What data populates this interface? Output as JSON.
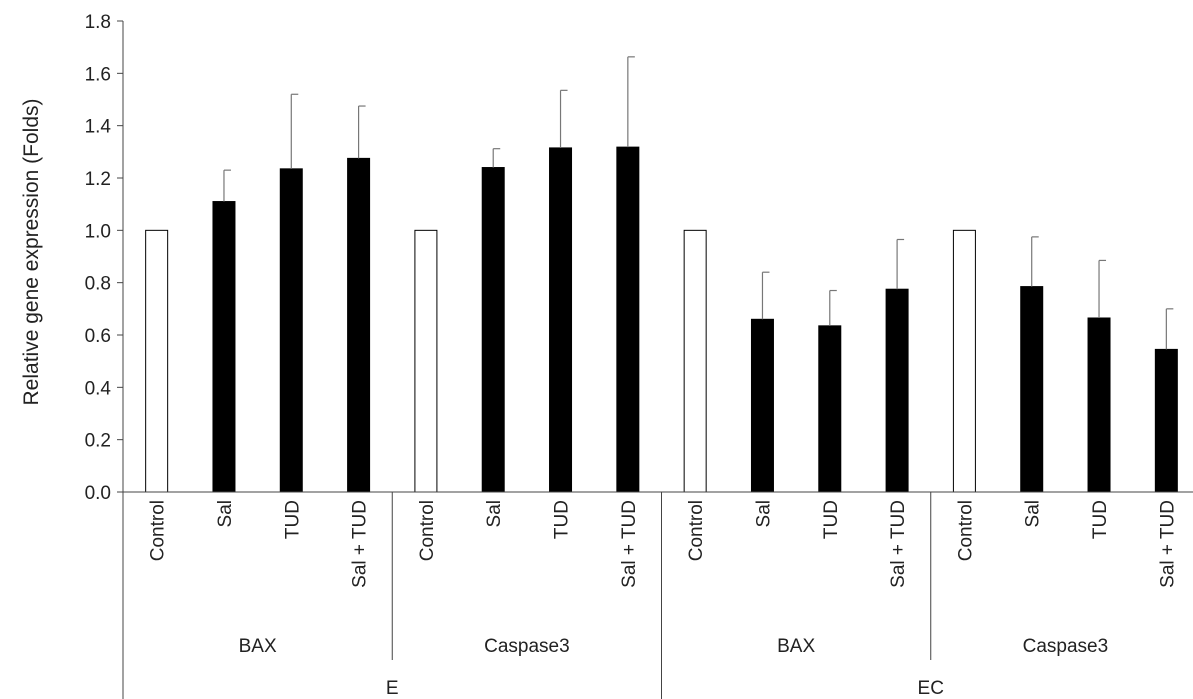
{
  "chart_data": {
    "type": "bar",
    "title": "",
    "ylabel": "Relative gene expression (Folds)",
    "ylim": [
      0,
      1.8
    ],
    "yticks": [
      "0.0",
      "0.2",
      "0.4",
      "0.6",
      "0.8",
      "1.0",
      "1.2",
      "1.4",
      "1.6",
      "1.8"
    ],
    "grid": false,
    "legend": "none",
    "categories": [
      "Control",
      "Sal",
      "TUD",
      "Sal + TUD",
      "Control",
      "Sal",
      "TUD",
      "Sal + TUD",
      "Control",
      "Sal",
      "TUD",
      "Sal + TUD",
      "Control",
      "Sal",
      "TUD",
      "Sal + TUD"
    ],
    "values": [
      1.0,
      1.11,
      1.235,
      1.275,
      1.0,
      1.24,
      1.315,
      1.318,
      1.0,
      0.66,
      0.635,
      0.775,
      1.0,
      0.785,
      0.665,
      0.545
    ],
    "errors": [
      0,
      0.12,
      0.285,
      0.2,
      0,
      0.072,
      0.22,
      0.345,
      0,
      0.18,
      0.135,
      0.19,
      0,
      0.19,
      0.22,
      0.155
    ],
    "fills": [
      "#ffffff",
      "#000000",
      "#000000",
      "#000000",
      "#ffffff",
      "#000000",
      "#000000",
      "#000000",
      "#ffffff",
      "#000000",
      "#000000",
      "#000000",
      "#ffffff",
      "#000000",
      "#000000",
      "#000000"
    ],
    "genes": [
      "BAX",
      "Caspase3",
      "BAX",
      "Caspase3"
    ],
    "groups": [
      "E",
      "EC"
    ]
  }
}
